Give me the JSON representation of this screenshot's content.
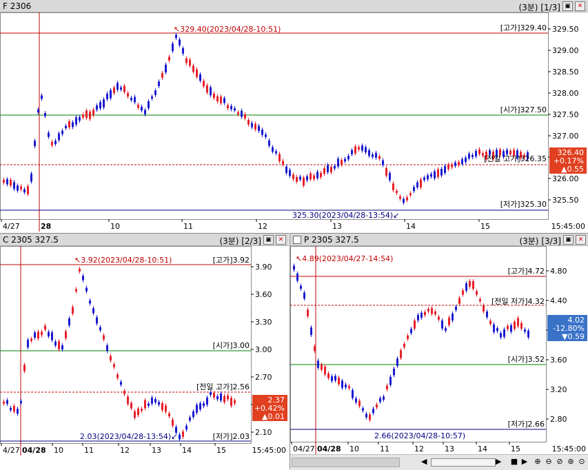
{
  "top": {
    "title": "F 2306",
    "interval": "(3분)",
    "page": "[1/3]",
    "vline": "",
    "high_label": "329.40(2023/04/28-10:51)",
    "low_label": "325.30(2023/04/28-13:54)",
    "right_labels": {
      "high": "[고가]329.40",
      "open": "[시가]327.50",
      "prev_high": "[전일 고가]326.35",
      "low": "[저가]325.30"
    },
    "yticks": [
      "329.50",
      "329.00",
      "328.50",
      "328.00",
      "327.50",
      "327.00",
      "326.50",
      "326.00",
      "325.50"
    ],
    "xticks": [
      "4/27",
      "28",
      "10",
      "11",
      "12",
      "13",
      "14",
      "15"
    ],
    "x_end": "15:45:00",
    "current": {
      "price": "326.40",
      "pct": "+0.17%",
      "chg": "▲0.55"
    }
  },
  "bottom_left": {
    "title": "C 2305 327.5",
    "interval": "(3분)",
    "page": "[2/3]",
    "high_label": "3.92(2023/04/28-10:51)",
    "low_label": "2.03(2023/04/28-13:54)",
    "right_labels": {
      "high": "[고가]3.92",
      "open": "[시가]3.00",
      "prev_high": "[전일 고가]2.56",
      "low": "[저가]2.03"
    },
    "yticks": [
      "3.90",
      "3.60",
      "3.30",
      "3.00",
      "2.70",
      "2.40",
      "2.10"
    ],
    "xticks": [
      "4/27",
      "04/28",
      "10",
      "11",
      "12",
      "13",
      "14",
      "15"
    ],
    "x_end": "15:45:00",
    "current": {
      "price": "2.37",
      "pct": "+0.42%",
      "chg": "▲0.01"
    }
  },
  "bottom_right": {
    "title": "P 2305 327.5",
    "interval": "(3분)",
    "page": "[3/3]",
    "high_label": "4.89(2023/04/27-14:54)",
    "low_label": "2.66(2023/04/28-10:57)",
    "right_labels": {
      "high": "[고가]4.72",
      "prev_low": "[전일 저가]4.32",
      "open": "[시가]3.52",
      "low": "[저가]2.66"
    },
    "yticks": [
      "4.80",
      "4.40",
      "4.00",
      "3.60",
      "3.20",
      "2.80"
    ],
    "xticks": [
      "04/27",
      "04/28",
      "10",
      "11",
      "12",
      "13",
      "14",
      "15"
    ],
    "x_end": "15:45:00",
    "current": {
      "price": "4.02",
      "pct": "-12.80%",
      "chg": "▼0.59"
    }
  },
  "colors": {
    "up": "#e8202a",
    "down": "#1a1ad0",
    "high_line": "#c00000",
    "open_line": "#008000",
    "low_line": "#000080",
    "badge_up": "#e04020",
    "badge_down": "#3a72c8"
  },
  "icons": [
    "maximize-icon",
    "close-icon",
    "scroll-left-icon",
    "scroll-right-icon",
    "zoom-in-icon",
    "zoom-out-icon",
    "zoom-reset-icon",
    "zoom-search-icon",
    "play-icon",
    "stop-icon",
    "back-icon"
  ]
}
